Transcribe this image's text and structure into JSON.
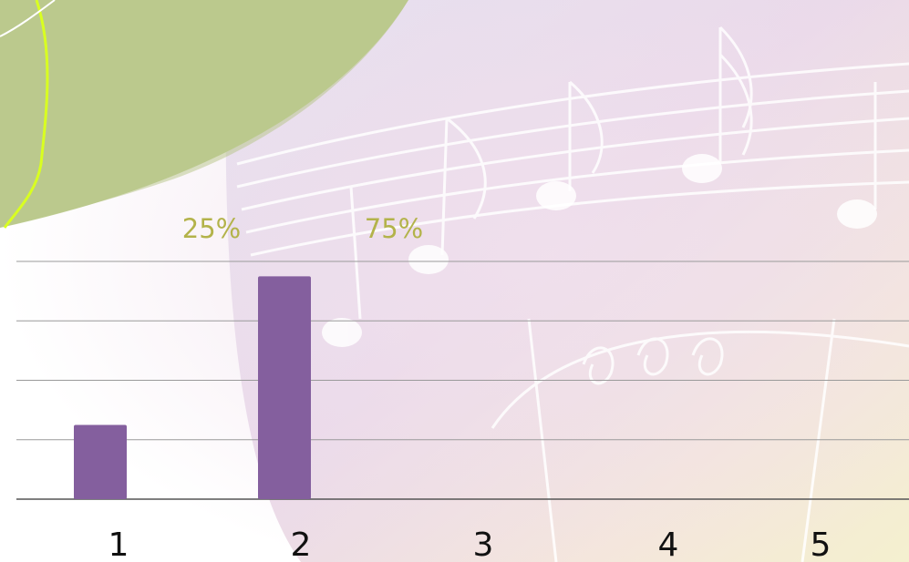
{
  "chart_data": {
    "type": "bar",
    "categories": [
      "1",
      "2",
      "3",
      "4",
      "5"
    ],
    "values": [
      25,
      75,
      null,
      null,
      null
    ],
    "value_labels": [
      "25%",
      "75%",
      null,
      null,
      null
    ],
    "color": "#845f9e",
    "ylim": [
      0,
      80
    ],
    "yticks": [
      0,
      20,
      40,
      60,
      80
    ],
    "grid": true
  }
}
